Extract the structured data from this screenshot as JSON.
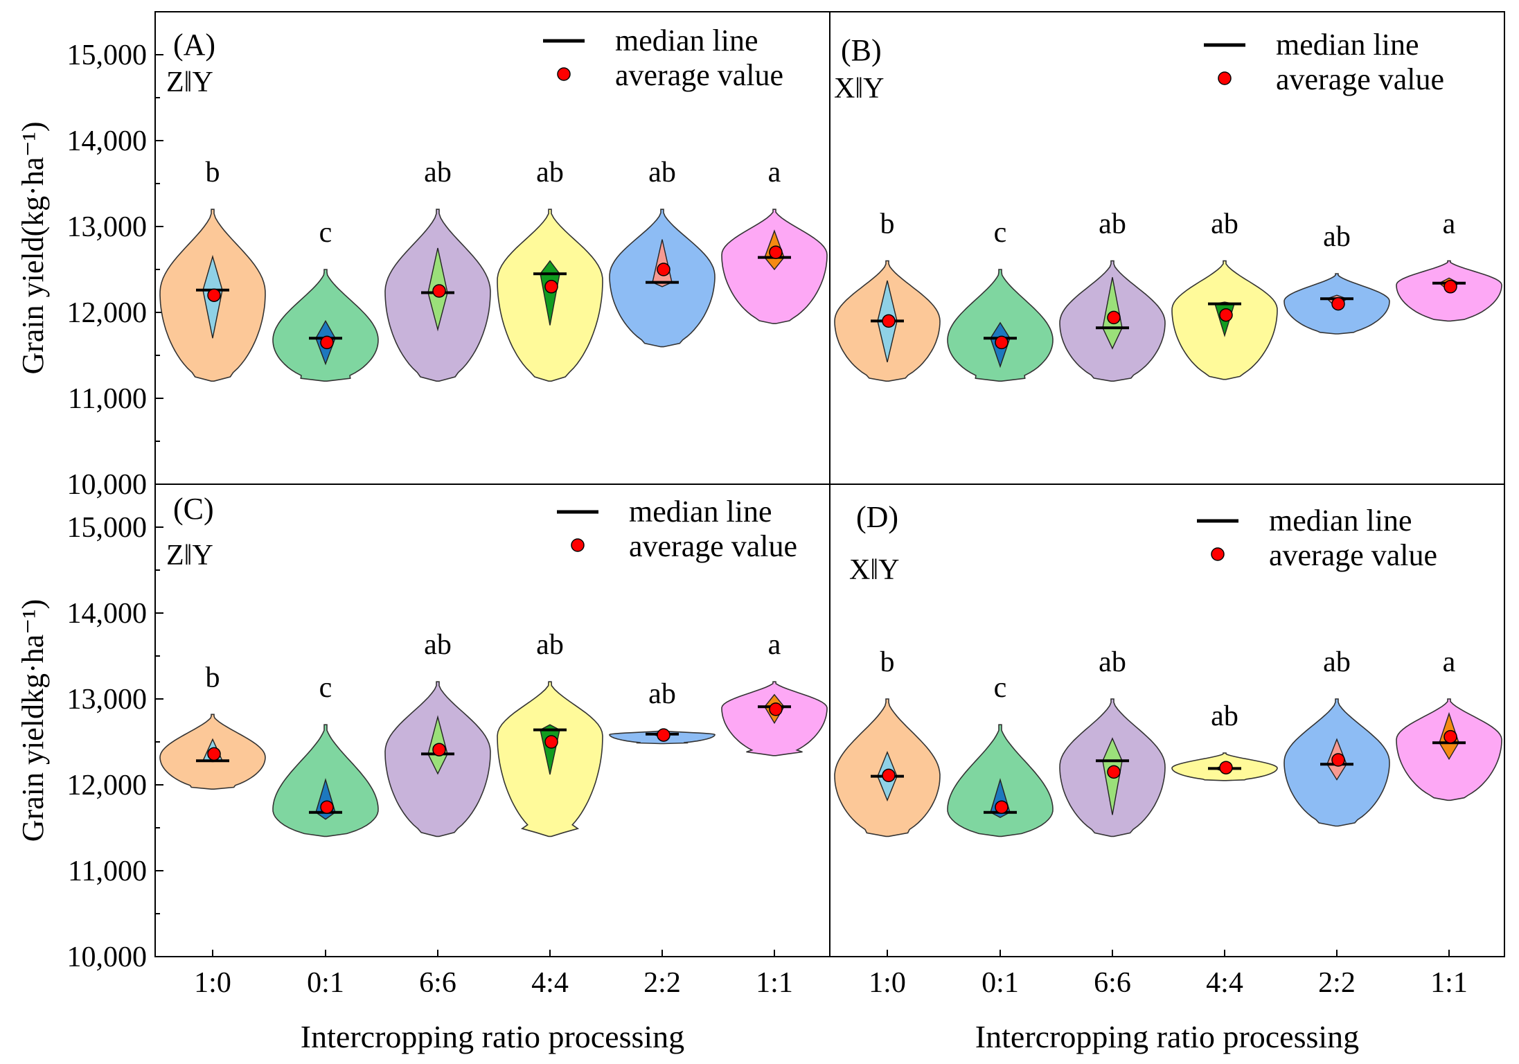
{
  "y_axis": {
    "label_top": "Grain yield(kg·ha⁻¹)",
    "label_bottom": "Grain yieldkg·ha⁻¹)",
    "ticks": [
      10000,
      11000,
      12000,
      13000,
      14000,
      15000
    ],
    "tick_labels": [
      "10,000",
      "11,000",
      "12,000",
      "13,000",
      "14,000",
      "15,000"
    ]
  },
  "x_axis": {
    "label": "Intercropping ratio processing",
    "categories": [
      "1:0",
      "0:1",
      "6:6",
      "4:4",
      "2:2",
      "1:1"
    ]
  },
  "legend": {
    "median_label": "median line",
    "average_label": "average value"
  },
  "colors": {
    "violin": [
      "#fcc898",
      "#7fd6a0",
      "#c8b3da",
      "#fffa9a",
      "#8dbcf4",
      "#fda8f5"
    ],
    "diamond": [
      "#8fd1e6",
      "#1d78be",
      "#9be07a",
      "#129c20",
      "#f79a92",
      "#f58a12"
    ],
    "average_dot": "#ff0000"
  },
  "chart_data": [
    {
      "panel": "(A)",
      "subtitle": "Z‖Y",
      "type": "violin",
      "ylim": [
        10000,
        15500
      ],
      "categories": [
        "1:0",
        "0:1",
        "6:6",
        "4:4",
        "2:2",
        "1:1"
      ],
      "min": [
        11200,
        11200,
        11200,
        11200,
        11600,
        11870
      ],
      "max": [
        13200,
        12500,
        13200,
        13200,
        13200,
        13200
      ],
      "q1": [
        11700,
        11400,
        11800,
        11850,
        12300,
        12500
      ],
      "q3": [
        12650,
        11900,
        12750,
        12600,
        12850,
        12950
      ],
      "median": [
        12260,
        11700,
        12230,
        12450,
        12350,
        12640
      ],
      "mean": [
        12200,
        11650,
        12250,
        12300,
        12500,
        12700
      ],
      "significance": [
        "b",
        "c",
        "ab",
        "ab",
        "ab",
        "a"
      ]
    },
    {
      "panel": "(B)",
      "subtitle": "X‖Y",
      "type": "violin",
      "ylim": [
        10000,
        15500
      ],
      "categories": [
        "1:0",
        "0:1",
        "6:6",
        "4:4",
        "2:2",
        "1:1"
      ],
      "min": [
        11200,
        11200,
        11200,
        11220,
        11750,
        11900
      ],
      "max": [
        12600,
        12500,
        12600,
        12600,
        12450,
        12600
      ],
      "q1": [
        11420,
        11370,
        11580,
        11730,
        12050,
        12250
      ],
      "q3": [
        12370,
        11880,
        12410,
        12120,
        12200,
        12400
      ],
      "median": [
        11900,
        11700,
        11820,
        12100,
        12160,
        12340
      ],
      "mean": [
        11900,
        11650,
        11940,
        11970,
        12100,
        12300
      ],
      "significance": [
        "b",
        "c",
        "ab",
        "ab",
        "ab",
        "a"
      ]
    },
    {
      "panel": "(C)",
      "subtitle": "Z‖Y",
      "type": "violin",
      "ylim": [
        10000,
        15500
      ],
      "categories": [
        "1:0",
        "0:1",
        "6:6",
        "4:4",
        "2:2",
        "1:1"
      ],
      "min": [
        11950,
        11400,
        11400,
        11400,
        12480,
        12340
      ],
      "max": [
        12820,
        12700,
        13200,
        13200,
        12630,
        13200
      ],
      "q1": [
        12270,
        11600,
        12130,
        12120,
        12550,
        12720
      ],
      "q3": [
        12530,
        12060,
        12790,
        12700,
        12620,
        13050
      ],
      "median": [
        12280,
        11680,
        12360,
        12640,
        12590,
        12910
      ],
      "mean": [
        12360,
        11740,
        12410,
        12500,
        12580,
        12880
      ],
      "significance": [
        "b",
        "c",
        "ab",
        "ab",
        "ab",
        "a"
      ]
    },
    {
      "panel": "(D)",
      "subtitle": "X‖Y",
      "type": "violin",
      "ylim": [
        10000,
        15500
      ],
      "categories": [
        "1:0",
        "0:1",
        "6:6",
        "4:4",
        "2:2",
        "1:1"
      ],
      "min": [
        11400,
        11400,
        11400,
        12050,
        11520,
        11820
      ],
      "max": [
        13000,
        12700,
        13000,
        12370,
        13000,
        13000
      ],
      "q1": [
        11820,
        11620,
        11650,
        12150,
        12060,
        12300
      ],
      "q3": [
        12380,
        12060,
        12540,
        12230,
        12530,
        12830
      ],
      "median": [
        12100,
        11680,
        12280,
        12190,
        12240,
        12490
      ],
      "mean": [
        12110,
        11740,
        12150,
        12200,
        12290,
        12560
      ],
      "significance": [
        "b",
        "c",
        "ab",
        "ab",
        "ab",
        "a"
      ]
    }
  ]
}
